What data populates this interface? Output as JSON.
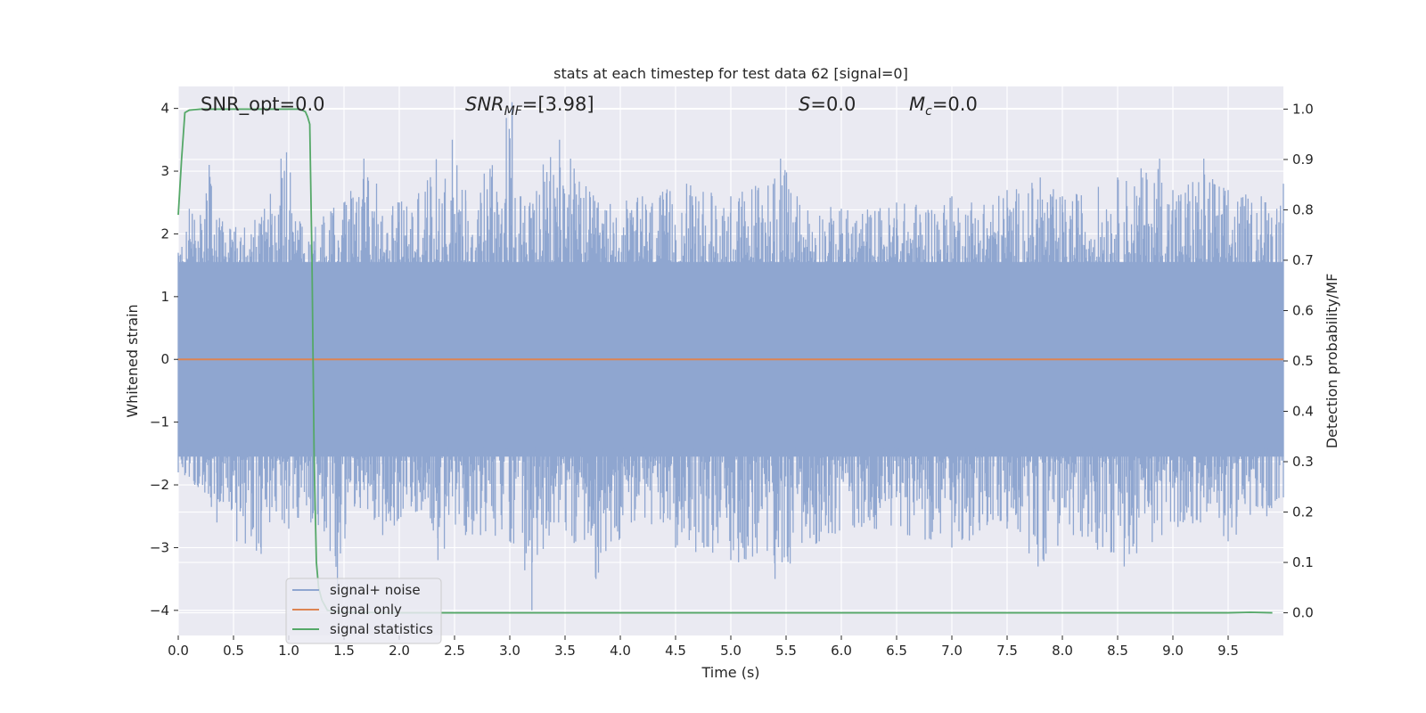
{
  "page": {
    "background": "#ffffff",
    "plot_background": "#eaeaf2",
    "grid_color": "#ffffff"
  },
  "chart_data": {
    "type": "line",
    "title": "stats at each timestep for test data 62 [signal=0]",
    "xlabel": "Time (s)",
    "ylabel": "Whitened strain",
    "y2label": "Detection probability/MF",
    "xlim": [
      0,
      10
    ],
    "ylim": [
      -4.4,
      4.35
    ],
    "y2lim": [
      -0.045,
      1.045
    ],
    "xticks": [
      "0.0",
      "0.5",
      "1.0",
      "1.5",
      "2.0",
      "2.5",
      "3.0",
      "3.5",
      "4.0",
      "4.5",
      "5.0",
      "5.5",
      "6.0",
      "6.5",
      "7.0",
      "7.5",
      "8.0",
      "8.5",
      "9.0",
      "9.5"
    ],
    "xtick_values": [
      0,
      0.5,
      1,
      1.5,
      2,
      2.5,
      3,
      3.5,
      4,
      4.5,
      5,
      5.5,
      6,
      6.5,
      7,
      7.5,
      8,
      8.5,
      9,
      9.5
    ],
    "yticks": [
      "−4",
      "−3",
      "−2",
      "−1",
      "0",
      "1",
      "2",
      "3",
      "4"
    ],
    "ytick_values": [
      -4,
      -3,
      -2,
      -1,
      0,
      1,
      2,
      3,
      4
    ],
    "y2ticks": [
      "0.0",
      "0.1",
      "0.2",
      "0.3",
      "0.4",
      "0.5",
      "0.6",
      "0.7",
      "0.8",
      "0.9",
      "1.0"
    ],
    "y2tick_values": [
      0,
      0.1,
      0.2,
      0.3,
      0.4,
      0.5,
      0.6,
      0.7,
      0.8,
      0.9,
      1.0
    ],
    "grid": true,
    "annotations": {
      "snr_opt": "SNR_opt=0.0",
      "snr_mf_main": "SNR",
      "snr_mf_sub": "MF",
      "snr_mf_tail": "=[3.98]",
      "s_main": "S",
      "s_tail": "=0.0",
      "mc_main": "M",
      "mc_sub": "c",
      "mc_tail": "=0.0"
    },
    "legend": {
      "location": "lower-left",
      "entries": [
        "signal+ noise",
        "signal only",
        "signal statistics"
      ]
    },
    "series": [
      {
        "name": "signal+ noise",
        "color": "#8fa6d0",
        "axis": "left",
        "envelope_upper": [
          [
            0.0,
            1.7
          ],
          [
            0.1,
            2.4
          ],
          [
            0.2,
            2.3
          ],
          [
            0.28,
            3.1
          ],
          [
            0.4,
            2.2
          ],
          [
            0.6,
            2.1
          ],
          [
            0.78,
            2.4
          ],
          [
            0.93,
            3.2
          ],
          [
            0.98,
            3.3
          ],
          [
            1.1,
            2.2
          ],
          [
            1.5,
            2.5
          ],
          [
            1.68,
            3.2
          ],
          [
            2.0,
            2.5
          ],
          [
            2.48,
            3.5
          ],
          [
            2.6,
            2.7
          ],
          [
            3.02,
            4.1
          ],
          [
            3.1,
            2.6
          ],
          [
            3.45,
            3.5
          ],
          [
            3.55,
            3.2
          ],
          [
            3.8,
            2.5
          ],
          [
            4.2,
            2.6
          ],
          [
            4.6,
            2.8
          ],
          [
            5.0,
            2.6
          ],
          [
            5.45,
            3.2
          ],
          [
            5.6,
            2.6
          ],
          [
            6.0,
            2.4
          ],
          [
            6.5,
            2.5
          ],
          [
            7.0,
            2.6
          ],
          [
            7.5,
            2.7
          ],
          [
            7.8,
            2.9
          ],
          [
            8.0,
            2.6
          ],
          [
            8.5,
            2.9
          ],
          [
            8.88,
            3.2
          ],
          [
            9.0,
            2.7
          ],
          [
            9.28,
            3.2
          ],
          [
            9.5,
            2.7
          ],
          [
            9.8,
            2.6
          ],
          [
            10.0,
            2.8
          ]
        ],
        "envelope_lower": [
          [
            0.0,
            -1.8
          ],
          [
            0.15,
            -2.0
          ],
          [
            0.35,
            -2.6
          ],
          [
            0.53,
            -2.9
          ],
          [
            0.75,
            -3.1
          ],
          [
            1.0,
            -2.7
          ],
          [
            1.2,
            -2.6
          ],
          [
            1.44,
            -3.7
          ],
          [
            1.6,
            -2.3
          ],
          [
            1.85,
            -2.8
          ],
          [
            2.2,
            -2.4
          ],
          [
            2.35,
            -3.2
          ],
          [
            2.6,
            -2.8
          ],
          [
            3.0,
            -2.9
          ],
          [
            3.2,
            -4.0
          ],
          [
            3.4,
            -2.6
          ],
          [
            3.78,
            -3.5
          ],
          [
            4.1,
            -2.6
          ],
          [
            4.5,
            -3.0
          ],
          [
            5.0,
            -3.2
          ],
          [
            5.4,
            -3.5
          ],
          [
            5.8,
            -2.9
          ],
          [
            6.3,
            -2.7
          ],
          [
            6.6,
            -2.8
          ],
          [
            7.0,
            -3.0
          ],
          [
            7.5,
            -2.7
          ],
          [
            7.78,
            -3.3
          ],
          [
            8.1,
            -2.8
          ],
          [
            8.56,
            -3.3
          ],
          [
            8.9,
            -2.8
          ],
          [
            9.25,
            -2.6
          ],
          [
            9.5,
            -2.9
          ],
          [
            9.85,
            -2.5
          ],
          [
            10.0,
            -2.2
          ]
        ]
      },
      {
        "name": "signal only",
        "color": "#dd8452",
        "axis": "left",
        "x": [
          0,
          10
        ],
        "y": [
          0,
          0
        ]
      },
      {
        "name": "signal statistics",
        "color": "#55a868",
        "axis": "right",
        "x": [
          0.0,
          0.03,
          0.06,
          0.1,
          0.15,
          0.2,
          0.4,
          0.6,
          0.8,
          1.0,
          1.1,
          1.15,
          1.17,
          1.19,
          1.21,
          1.23,
          1.25,
          1.27,
          1.3,
          1.35,
          1.5,
          2.0,
          3.0,
          4.0,
          5.0,
          6.0,
          7.0,
          8.0,
          9.0,
          9.5,
          9.7,
          9.9
        ],
        "y": [
          0.79,
          0.9,
          0.993,
          0.998,
          0.999,
          1.0,
          1.0,
          1.0,
          1.0,
          1.0,
          1.0,
          0.995,
          0.985,
          0.97,
          0.7,
          0.3,
          0.1,
          0.05,
          0.025,
          0.005,
          0.001,
          0.0,
          0.0,
          0.0,
          0.0,
          0.0,
          0.0,
          0.0,
          0.0,
          0.0,
          0.001,
          0.0
        ]
      }
    ]
  }
}
